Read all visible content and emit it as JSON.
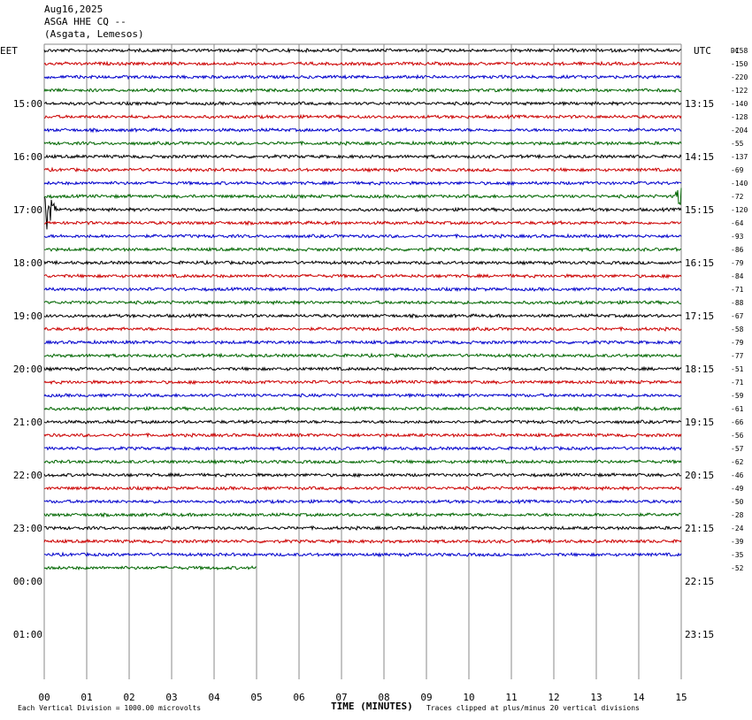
{
  "header": {
    "date": "Aug16,2025",
    "station": "ASGA HHE CQ --",
    "location": "(Asgata, Lemesos)"
  },
  "chart_data": {
    "type": "line",
    "title": "",
    "xlabel": "TIME (MINUTES)",
    "ylabel": "",
    "left_tz": "EET",
    "right_tz": "UTC",
    "dc_label": "DC",
    "xlim": [
      0,
      15
    ],
    "x_ticks": [
      "00",
      "01",
      "02",
      "03",
      "04",
      "05",
      "06",
      "07",
      "08",
      "09",
      "10",
      "11",
      "12",
      "13",
      "14",
      "15"
    ],
    "left_hour_labels": [
      "15:00",
      "16:00",
      "17:00",
      "18:00",
      "19:00",
      "20:00",
      "21:00",
      "22:00",
      "23:00",
      "00:00",
      "01:00"
    ],
    "right_hour_labels": [
      "13:15",
      "14:15",
      "15:15",
      "16:15",
      "17:15",
      "18:15",
      "19:15",
      "20:15",
      "21:15",
      "22:15",
      "23:15"
    ],
    "trace_colors": [
      "#000000",
      "#cc0000",
      "#0000cc",
      "#006600"
    ],
    "trace_count": 40,
    "last_trace_end_minute": 5,
    "event_trace_index": 12,
    "dc_offsets": [
      -158,
      -150,
      -220,
      -122,
      -140,
      -128,
      -204,
      -55,
      -137,
      -69,
      -140,
      -72,
      -120,
      -64,
      -93,
      -86,
      -79,
      -84,
      -71,
      -88,
      -67,
      -58,
      -79,
      -77,
      -51,
      -71,
      -59,
      -61,
      -66,
      -56,
      -57,
      -62,
      -46,
      -49,
      -50,
      -28,
      -24,
      -39,
      -35,
      -52
    ],
    "footer_left": "Each Vertical Division = 1000.00 microvolts",
    "footer_right": "Traces clipped at plus/minus 20 vertical divisions"
  }
}
